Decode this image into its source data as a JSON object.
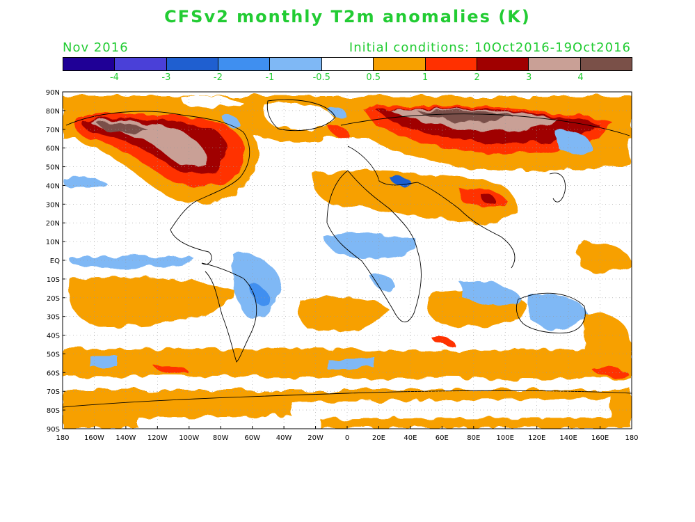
{
  "title": "CFSv2 monthly T2m anomalies (K)",
  "month_label": "Nov 2016",
  "initial_conditions": "Initial conditions: 10Oct2016-19Oct2016",
  "colorbar": {
    "colors": [
      "#1f0096",
      "#4a40d8",
      "#1f5fd0",
      "#3f8ff0",
      "#7fb8f5",
      "#ffffff",
      "#f7a000",
      "#ff3000",
      "#a00000",
      "#c9a096",
      "#7a5048"
    ],
    "labels": [
      "-4",
      "-3",
      "-2",
      "-1",
      "-0.5",
      "0.5",
      "1",
      "2",
      "3",
      "4"
    ]
  },
  "lat_labels": [
    "90N",
    "80N",
    "70N",
    "60N",
    "50N",
    "40N",
    "30N",
    "20N",
    "10N",
    "EQ",
    "10S",
    "20S",
    "30S",
    "40S",
    "50S",
    "60S",
    "70S",
    "80S",
    "90S"
  ],
  "lon_labels": [
    "180",
    "160W",
    "140W",
    "120W",
    "100W",
    "80W",
    "60W",
    "40W",
    "20W",
    "0",
    "20E",
    "40E",
    "60E",
    "80E",
    "100E",
    "120E",
    "140E",
    "160E",
    "180"
  ]
}
